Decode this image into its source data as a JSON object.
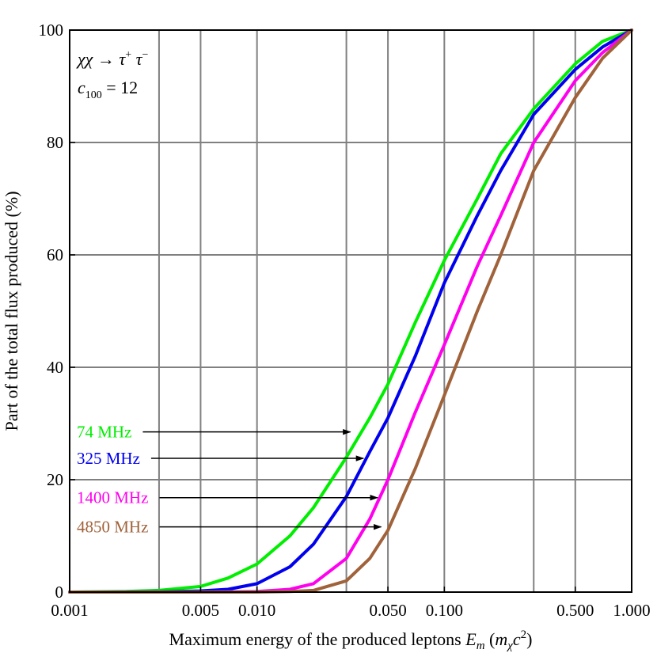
{
  "chart_data": {
    "type": "line",
    "title": "",
    "xlabel": "Maximum energy of the produced leptons E_m (m_χ c²)",
    "xlabel_parts": {
      "main": "Maximum energy of the produced leptons ",
      "em_E": "E",
      "em_sub": "m",
      "paren_open": " (",
      "m": "m",
      "chi": "χ",
      "c": "c",
      "sup": "2",
      "paren_close": ")"
    },
    "ylabel": "Part of the total flux produced (%)",
    "x_scale": "log",
    "xlim": [
      0.001,
      1.0
    ],
    "ylim": [
      0,
      100
    ],
    "grid": true,
    "x_ticks": [
      {
        "value": 0.001,
        "label": "0.001"
      },
      {
        "value": 0.005,
        "label": "0.005"
      },
      {
        "value": 0.01,
        "label": "0.010"
      },
      {
        "value": 0.05,
        "label": "0.050"
      },
      {
        "value": 0.1,
        "label": "0.100"
      },
      {
        "value": 0.5,
        "label": "0.500"
      },
      {
        "value": 1.0,
        "label": "1.000"
      }
    ],
    "x_gridlines": [
      0.003,
      0.005,
      0.01,
      0.03,
      0.05,
      0.1,
      0.3,
      0.5
    ],
    "y_ticks": [
      {
        "value": 0,
        "label": "0"
      },
      {
        "value": 20,
        "label": "20"
      },
      {
        "value": 40,
        "label": "40"
      },
      {
        "value": 60,
        "label": "60"
      },
      {
        "value": 80,
        "label": "80"
      },
      {
        "value": 100,
        "label": "100"
      }
    ],
    "annotation": {
      "reaction": {
        "lhs": "χχ → τ",
        "sup_plus": "+",
        "tau2": " τ",
        "sup_minus": "−"
      },
      "coefficient": {
        "c": "c",
        "sub": "100",
        "rest": " = 12"
      }
    },
    "series": [
      {
        "name": "74 MHz",
        "color": "#00ee00",
        "x": [
          0.001,
          0.002,
          0.003,
          0.005,
          0.007,
          0.01,
          0.015,
          0.02,
          0.03,
          0.04,
          0.05,
          0.07,
          0.1,
          0.15,
          0.2,
          0.3,
          0.5,
          0.7,
          1.0
        ],
        "y": [
          0,
          0.1,
          0.3,
          1.0,
          2.5,
          5,
          10,
          15,
          24,
          31,
          37,
          48,
          59,
          70,
          78,
          86,
          94,
          98,
          100
        ],
        "arrow_x": 0.0315,
        "arrow_y": 28.5
      },
      {
        "name": "325 MHz",
        "color": "#0000ee",
        "x": [
          0.001,
          0.003,
          0.005,
          0.007,
          0.01,
          0.015,
          0.02,
          0.03,
          0.04,
          0.05,
          0.07,
          0.1,
          0.15,
          0.2,
          0.3,
          0.5,
          0.7,
          1.0
        ],
        "y": [
          0,
          0.05,
          0.2,
          0.5,
          1.5,
          4.5,
          8.5,
          17,
          25,
          31,
          42,
          55,
          67,
          75,
          85,
          93,
          97,
          100
        ],
        "arrow_x": 0.037,
        "arrow_y": 23.8
      },
      {
        "name": "1400 MHz",
        "color": "#ff00ee",
        "x": [
          0.001,
          0.005,
          0.01,
          0.015,
          0.02,
          0.03,
          0.04,
          0.05,
          0.07,
          0.1,
          0.15,
          0.2,
          0.3,
          0.5,
          0.7,
          1.0
        ],
        "y": [
          0,
          0,
          0.1,
          0.5,
          1.5,
          6,
          13,
          20,
          32,
          44,
          58,
          67,
          80,
          91,
          96,
          100
        ],
        "arrow_x": 0.044,
        "arrow_y": 16.8
      },
      {
        "name": "4850 MHz",
        "color": "#a0623a",
        "x": [
          0.001,
          0.01,
          0.015,
          0.02,
          0.03,
          0.04,
          0.05,
          0.07,
          0.1,
          0.15,
          0.2,
          0.3,
          0.5,
          0.7,
          1.0
        ],
        "y": [
          0,
          0,
          0.1,
          0.3,
          2,
          6,
          11,
          22,
          35,
          50,
          60,
          75,
          88,
          95,
          100
        ],
        "arrow_x": 0.046,
        "arrow_y": 11.6
      }
    ]
  }
}
